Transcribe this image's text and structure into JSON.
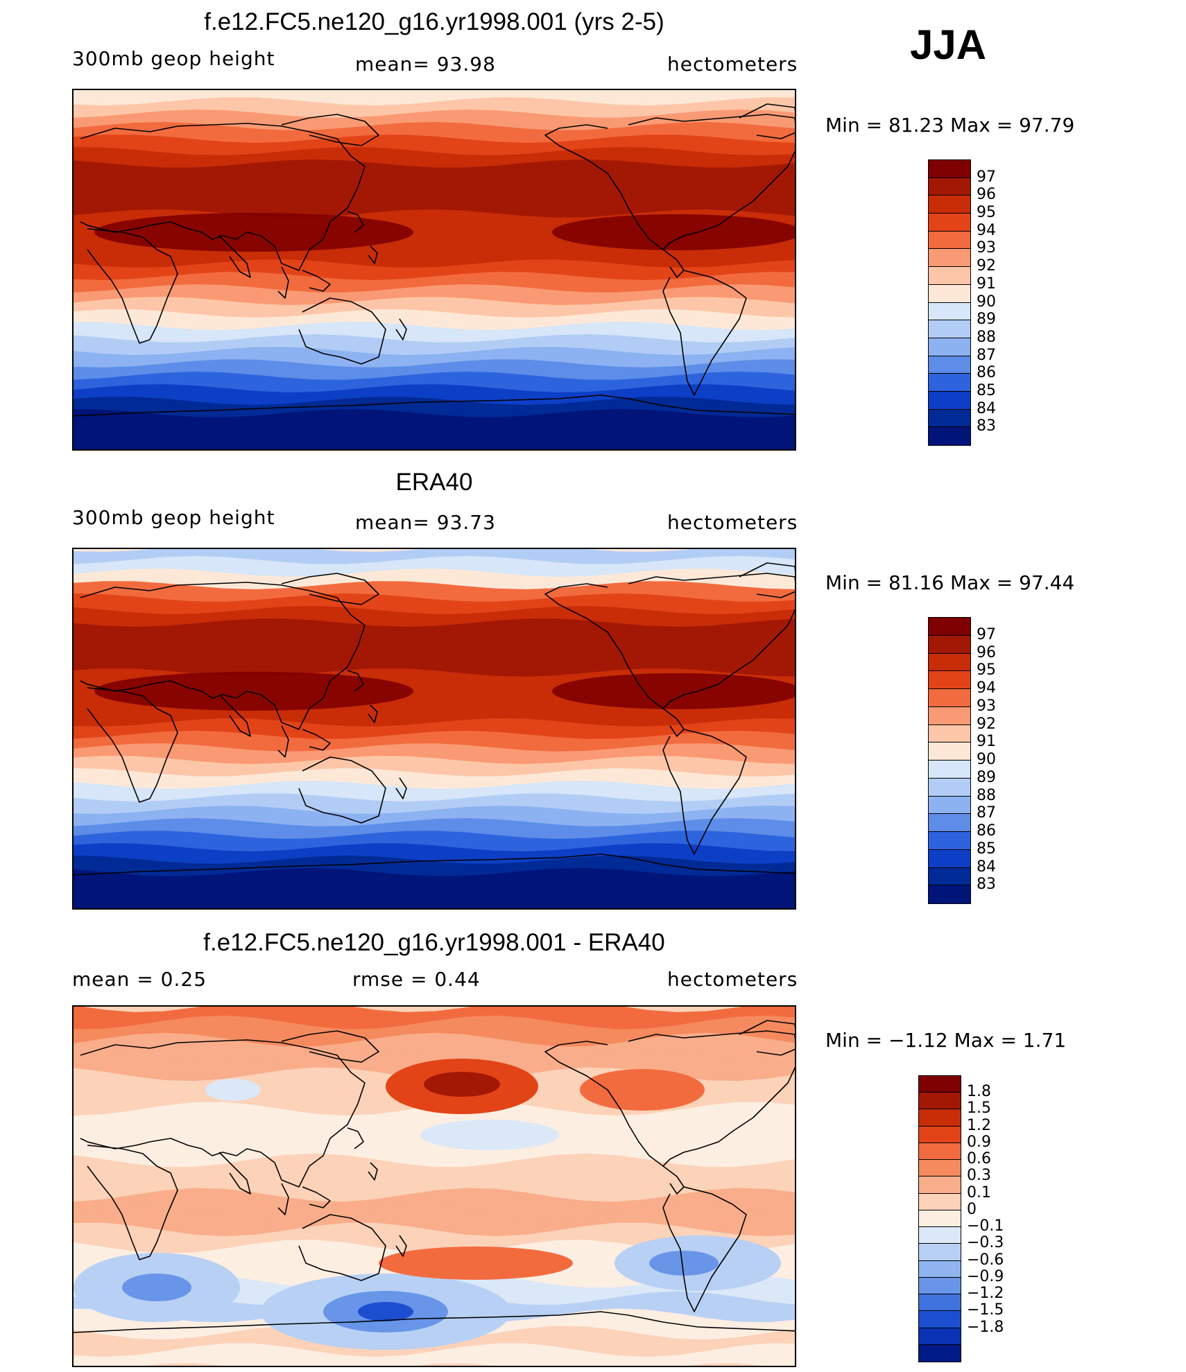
{
  "season": "JJA",
  "panels": [
    {
      "title": "f.e12.FC5.ne120_g16.yr1998.001 (yrs 2-5)",
      "left_label": "300mb  geop  height",
      "center_label": "mean=   93.98",
      "right_label": "hectometers",
      "minmax": "Min  =    81.23  Max  =    97.79",
      "map_type": "abs",
      "colorbar_labels": [
        "97",
        "96",
        "95",
        "94",
        "93",
        "92",
        "91",
        "90",
        "89",
        "88",
        "87",
        "86",
        "85",
        "84",
        "83"
      ]
    },
    {
      "title": "ERA40",
      "left_label": "300mb  geop  height",
      "center_label": "mean=   93.73",
      "right_label": "hectometers",
      "minmax": "Min  =    81.16  Max  =    97.44",
      "map_type": "abs",
      "colorbar_labels": [
        "97",
        "96",
        "95",
        "94",
        "93",
        "92",
        "91",
        "90",
        "89",
        "88",
        "87",
        "86",
        "85",
        "84",
        "83"
      ]
    },
    {
      "title": "f.e12.FC5.ne120_g16.yr1998.001 - ERA40",
      "left_label": "mean  =      0.25",
      "center_label": "rmse  =     0.44",
      "right_label": "hectometers",
      "minmax": "Min  =   −1.12  Max  =      1.71",
      "map_type": "diff",
      "colorbar_labels": [
        "1.8",
        "1.5",
        "1.2",
        "0.9",
        "0.6",
        "0.3",
        "0.1",
        "0",
        "−0.1",
        "−0.3",
        "−0.6",
        "−0.9",
        "−1.2",
        "−1.5",
        "−1.8"
      ]
    }
  ],
  "colors": {
    "abs_scale": [
      "#7f0000",
      "#a31804",
      "#c82d08",
      "#e24418",
      "#f26b3e",
      "#f99a74",
      "#fdc6a8",
      "#fde8d8",
      "#d7e6f8",
      "#b2cdf5",
      "#8db2f2",
      "#5d8de8",
      "#2e63de",
      "#0d3fc6",
      "#002a96",
      "#00147a"
    ],
    "diff_scale": [
      "#7f0000",
      "#a31804",
      "#c82d08",
      "#e24418",
      "#f26b3e",
      "#f58a5e",
      "#f9ad8a",
      "#fcd2b8",
      "#fdeee2",
      "#dbe8f8",
      "#b8d0f4",
      "#8fb4f0",
      "#6895e8",
      "#3f72dc",
      "#1c4fd0",
      "#0a32b4",
      "#001a86"
    ],
    "coast": "#000000"
  },
  "zonal_profiles": {
    "abs_bands_from_north": [
      7,
      6,
      5,
      4,
      3,
      2,
      1,
      1,
      1,
      1,
      2,
      2,
      2,
      2,
      3,
      4,
      5,
      6,
      7,
      8,
      9,
      10,
      11,
      12,
      13,
      14,
      15,
      15,
      15
    ],
    "diff_bands_from_north": [
      4,
      5,
      6,
      6,
      7,
      7,
      8,
      8,
      8,
      7,
      7,
      6,
      6,
      7,
      8,
      8,
      9,
      10,
      8,
      7,
      8
    ]
  }
}
